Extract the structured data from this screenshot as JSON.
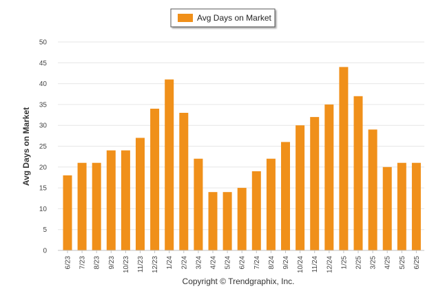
{
  "chart_data": {
    "type": "bar",
    "categories": [
      "6/23",
      "7/23",
      "8/23",
      "9/23",
      "10/23",
      "11/23",
      "12/23",
      "1/24",
      "2/24",
      "3/24",
      "4/24",
      "5/24",
      "6/24",
      "7/24",
      "8/24",
      "9/24",
      "10/24",
      "11/24",
      "12/24",
      "1/25",
      "2/25",
      "3/25",
      "4/25",
      "5/25",
      "6/25"
    ],
    "series": [
      {
        "name": "Avg Days on Market",
        "color": "#f0901a",
        "values": [
          18,
          21,
          21,
          24,
          24,
          27,
          34,
          41,
          33,
          22,
          14,
          14,
          15,
          19,
          22,
          26,
          30,
          32,
          35,
          44,
          37,
          29,
          20,
          21,
          21
        ]
      }
    ],
    "ylabel": "Avg Days on Market",
    "xlabel": "",
    "ylim": [
      0,
      50
    ],
    "yticks": [
      0,
      5,
      10,
      15,
      20,
      25,
      30,
      35,
      40,
      45,
      50
    ],
    "grid": true,
    "legend_position": "top-center"
  },
  "footer": {
    "copyright": "Copyright © Trendgraphix, Inc."
  }
}
